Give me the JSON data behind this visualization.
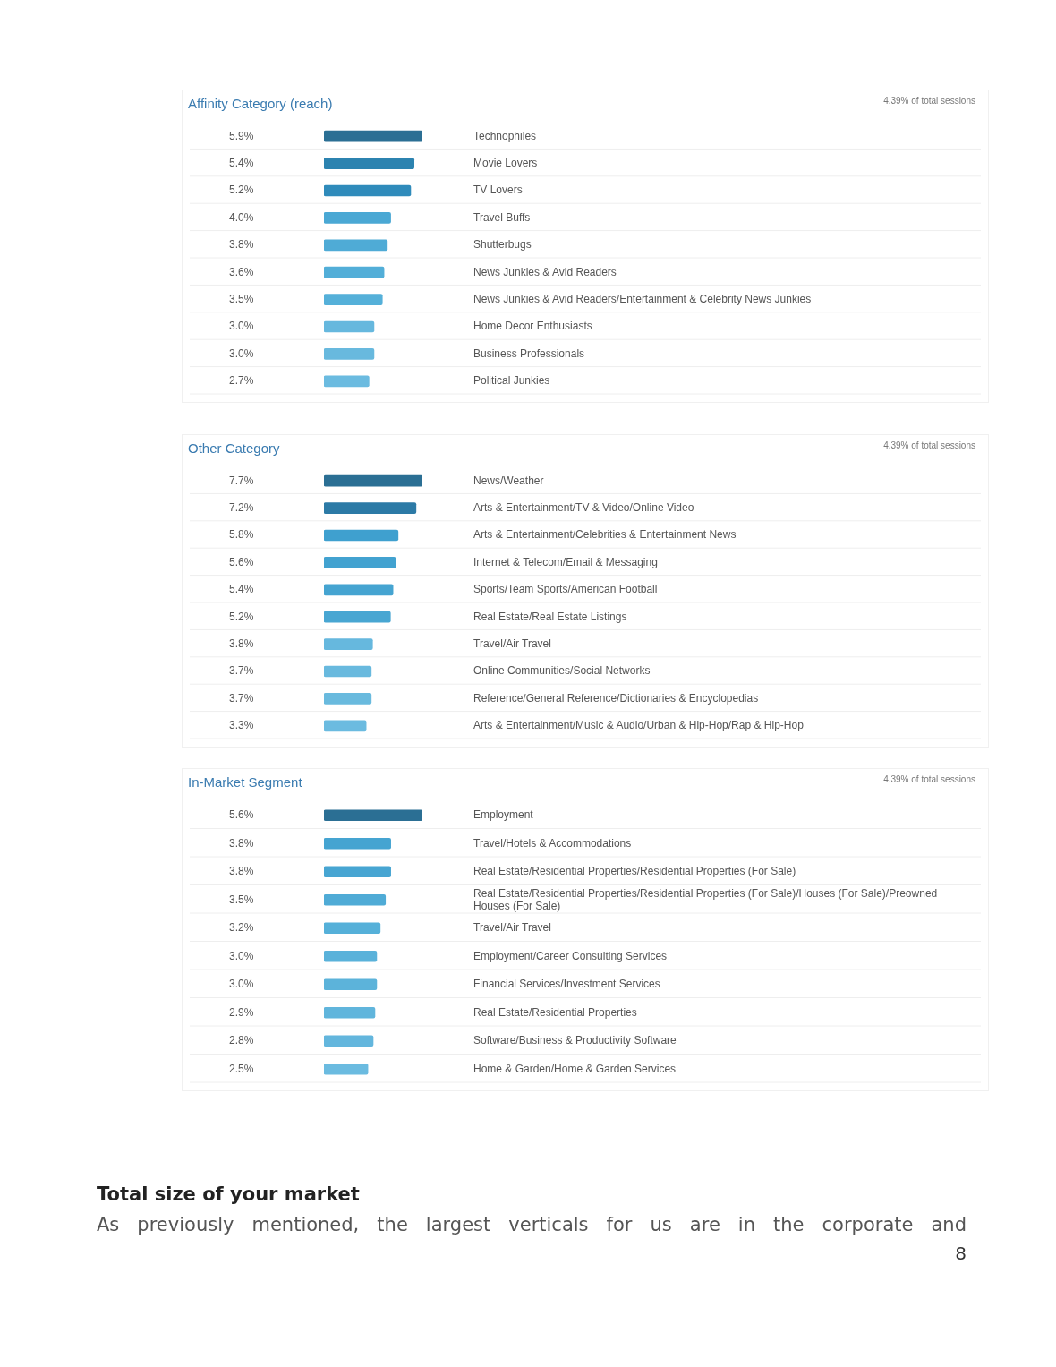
{
  "chart_data": [
    {
      "type": "bar",
      "orientation": "horizontal",
      "title": "Affinity Category (reach)",
      "annotations": [
        "4.39% of total sessions"
      ],
      "categories": [
        "Technophiles",
        "Movie Lovers",
        "TV Lovers",
        "Travel Buffs",
        "Shutterbugs",
        "News Junkies & Avid Readers",
        "News Junkies & Avid Readers/Entertainment & Celebrity News Junkies",
        "Home Decor Enthusiasts",
        "Business Professionals",
        "Political Junkies"
      ],
      "values": [
        5.9,
        5.4,
        5.2,
        4.0,
        3.8,
        3.6,
        3.5,
        3.0,
        3.0,
        2.7
      ],
      "value_labels": [
        "5.9%",
        "5.4%",
        "5.2%",
        "4.0%",
        "3.8%",
        "3.6%",
        "3.5%",
        "3.0%",
        "3.0%",
        "2.7%"
      ],
      "colors": [
        "#2b6f94",
        "#2c83b0",
        "#2f8bbb",
        "#4aa8d4",
        "#4fabd6",
        "#52aed8",
        "#55b0d9",
        "#66b8de",
        "#68b9de",
        "#6bbbe0"
      ]
    },
    {
      "type": "bar",
      "orientation": "horizontal",
      "title": "Other Category",
      "annotations": [
        "4.39% of total sessions"
      ],
      "categories": [
        "News/Weather",
        "Arts & Entertainment/TV & Video/Online Video",
        "Arts & Entertainment/Celebrities & Entertainment News",
        "Internet & Telecom/Email & Messaging",
        "Sports/Team Sports/American Football",
        "Real Estate/Real Estate Listings",
        "Travel/Air Travel",
        "Online Communities/Social Networks",
        "Reference/General Reference/Dictionaries & Encyclopedias",
        "Arts & Entertainment/Music & Audio/Urban & Hip-Hop/Rap & Hip-Hop"
      ],
      "values": [
        7.7,
        7.2,
        5.8,
        5.6,
        5.4,
        5.2,
        3.8,
        3.7,
        3.7,
        3.3
      ],
      "value_labels": [
        "7.7%",
        "7.2%",
        "5.8%",
        "5.6%",
        "5.4%",
        "5.2%",
        "3.8%",
        "3.7%",
        "3.7%",
        "3.3%"
      ],
      "colors": [
        "#2b6f94",
        "#2c7aa6",
        "#3fa0cf",
        "#42a2d0",
        "#45a4d1",
        "#48a6d2",
        "#66b8de",
        "#68b9de",
        "#69bade",
        "#6bbbe0"
      ]
    },
    {
      "type": "bar",
      "orientation": "horizontal",
      "title": "In-Market Segment",
      "annotations": [
        "4.39% of total sessions"
      ],
      "categories": [
        "Employment",
        "Travel/Hotels & Accommodations",
        "Real Estate/Residential Properties/Residential Properties (For Sale)",
        "Real Estate/Residential Properties/Residential Properties (For Sale)/Houses (For Sale)/Preowned Houses (For Sale)",
        "Travel/Air Travel",
        "Employment/Career Consulting Services",
        "Financial Services/Investment Services",
        "Real Estate/Residential Properties",
        "Software/Business & Productivity Software",
        "Home & Garden/Home & Garden Services"
      ],
      "values": [
        5.6,
        3.8,
        3.8,
        3.5,
        3.2,
        3.0,
        3.0,
        2.9,
        2.8,
        2.5
      ],
      "value_labels": [
        "5.6%",
        "3.8%",
        "3.8%",
        "3.5%",
        "3.2%",
        "3.0%",
        "3.0%",
        "2.9%",
        "2.8%",
        "2.5%"
      ],
      "colors": [
        "#2b6f94",
        "#45a4d1",
        "#47a5d2",
        "#4fabd6",
        "#55b0d9",
        "#5ab2da",
        "#5cb3da",
        "#60b5dc",
        "#63b6dd",
        "#6bbbe0"
      ]
    },
    {
      "type": "other",
      "title": "Total size of your market",
      "annotations": [
        "As previously mentioned, the largest verticals for us are in the corporate and",
        "8"
      ]
    }
  ]
}
